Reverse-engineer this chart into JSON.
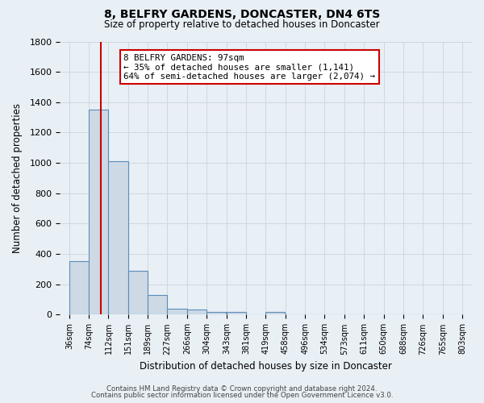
{
  "title": "8, BELFRY GARDENS, DONCASTER, DN4 6TS",
  "subtitle": "Size of property relative to detached houses in Doncaster",
  "xlabel": "Distribution of detached houses by size in Doncaster",
  "ylabel": "Number of detached properties",
  "bin_labels": [
    "36sqm",
    "74sqm",
    "112sqm",
    "151sqm",
    "189sqm",
    "227sqm",
    "266sqm",
    "304sqm",
    "343sqm",
    "381sqm",
    "419sqm",
    "458sqm",
    "496sqm",
    "534sqm",
    "573sqm",
    "611sqm",
    "650sqm",
    "688sqm",
    "726sqm",
    "765sqm",
    "803sqm"
  ],
  "bin_edges": [
    36,
    74,
    112,
    151,
    189,
    227,
    266,
    304,
    343,
    381,
    419,
    458,
    496,
    534,
    573,
    611,
    650,
    688,
    726,
    765,
    803
  ],
  "bar_heights": [
    355,
    1350,
    1010,
    290,
    130,
    42,
    32,
    20,
    20,
    0,
    18,
    0,
    0,
    0,
    0,
    0,
    0,
    0,
    0,
    0
  ],
  "bar_color": "#cdd9e5",
  "bar_edge_color": "#5b8db8",
  "red_line_x": 97,
  "annotation_title": "8 BELFRY GARDENS: 97sqm",
  "annotation_line1": "← 35% of detached houses are smaller (1,141)",
  "annotation_line2": "64% of semi-detached houses are larger (2,074) →",
  "annotation_box_facecolor": "#ffffff",
  "annotation_box_edgecolor": "#cc0000",
  "red_line_color": "#cc0000",
  "ylim": [
    0,
    1800
  ],
  "yticks": [
    0,
    200,
    400,
    600,
    800,
    1000,
    1200,
    1400,
    1600,
    1800
  ],
  "grid_color": "#d0d8e0",
  "background_color": "#e8eff5",
  "footer_line1": "Contains HM Land Registry data © Crown copyright and database right 2024.",
  "footer_line2": "Contains public sector information licensed under the Open Government Licence v3.0."
}
